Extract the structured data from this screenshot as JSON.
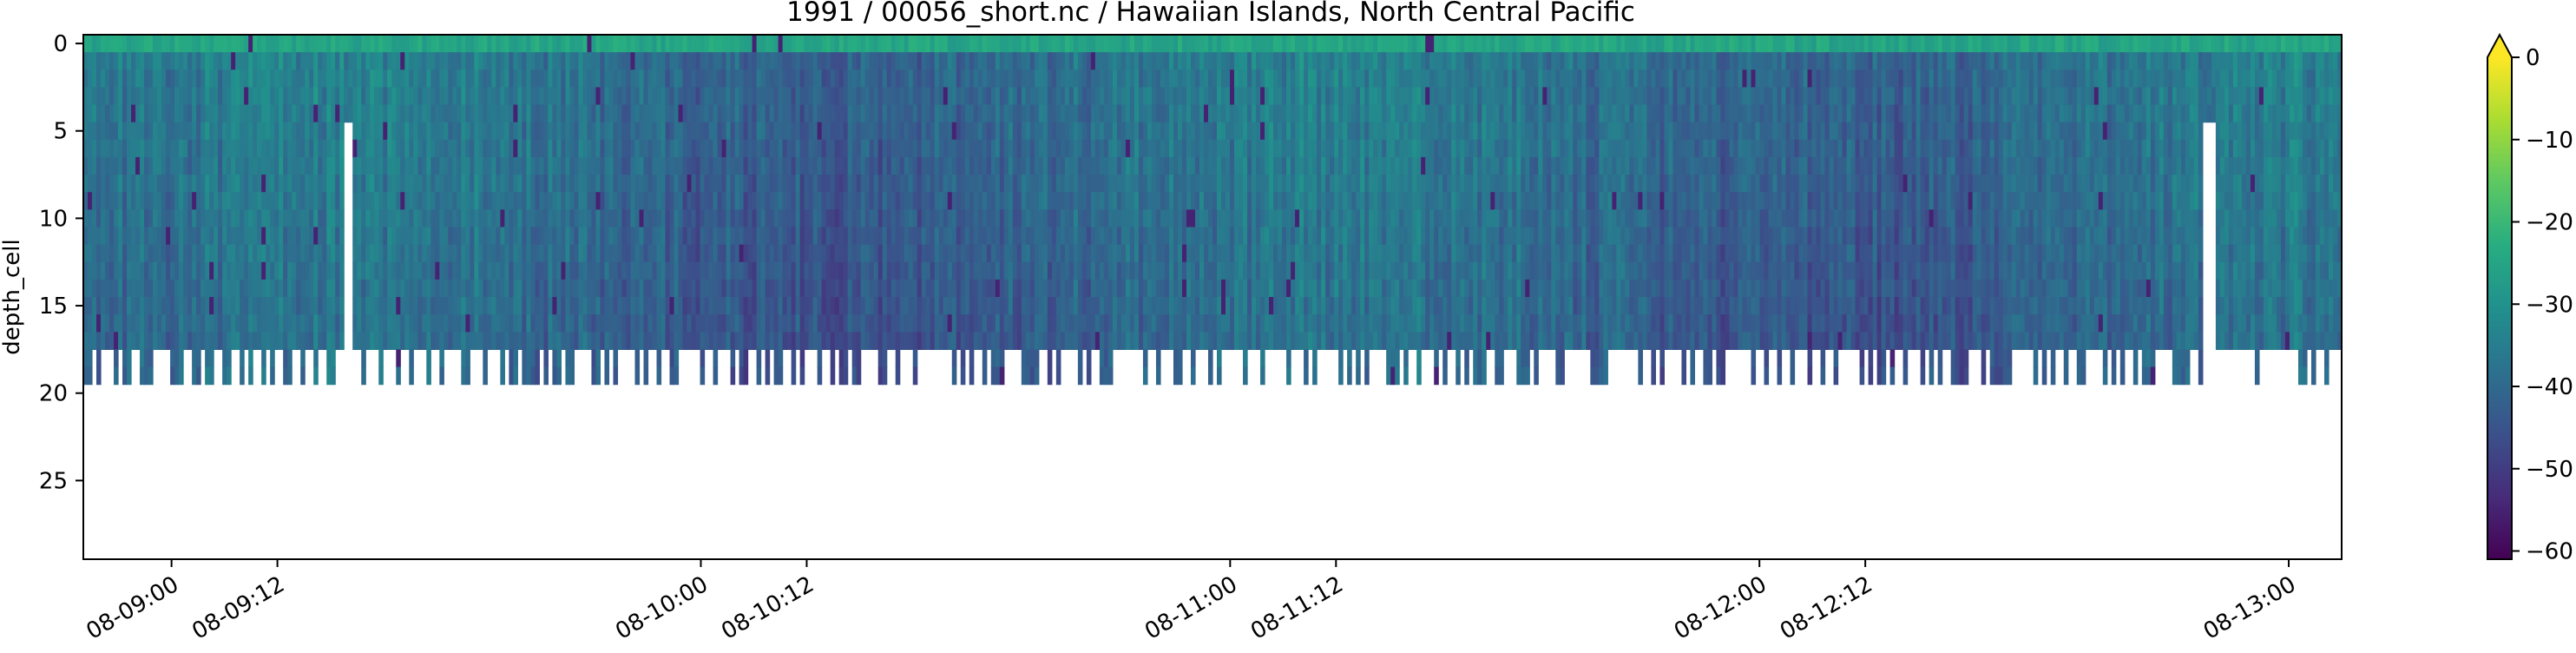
{
  "chart_data": {
    "type": "heatmap",
    "title": "1991 / 00056_short.nc / Hawaiian Islands, North Central Pacific",
    "xlabel": "",
    "ylabel": "depth_cell",
    "x_axis": {
      "kind": "datetime",
      "range": [
        "08-08:50",
        "08-13:06"
      ],
      "ticks": [
        {
          "value": "08-09:00",
          "label": "08-09:00"
        },
        {
          "value": "08-09:12",
          "label": "08-09:12"
        },
        {
          "value": "08-10:00",
          "label": "08-10:00"
        },
        {
          "value": "08-10:12",
          "label": "08-10:12"
        },
        {
          "value": "08-11:00",
          "label": "08-11:00"
        },
        {
          "value": "08-11:12",
          "label": "08-11:12"
        },
        {
          "value": "08-12:00",
          "label": "08-12:00"
        },
        {
          "value": "08-12:12",
          "label": "08-12:12"
        },
        {
          "value": "08-13:00",
          "label": "08-13:00"
        }
      ],
      "tick_label_rotation_deg": 30
    },
    "y_axis": {
      "range": [
        29.5,
        -0.5
      ],
      "inverted": true,
      "ticks": [
        0,
        5,
        10,
        15,
        20,
        25
      ]
    },
    "colorbar": {
      "colormap": "viridis",
      "range": [
        -61,
        0
      ],
      "ticks": [
        0,
        -10,
        -20,
        -30,
        -40,
        -50,
        -60
      ],
      "extend": "max"
    },
    "colormap_stops": [
      "#440154",
      "#472c7a",
      "#3b518b",
      "#2c718e",
      "#21908d",
      "#27ad81",
      "#5cc863",
      "#aadc32",
      "#fde725"
    ],
    "grid": false,
    "legend": "none",
    "data_summary": {
      "typical_value_range": [
        -50,
        -25
      ],
      "surface_cells_value": -25,
      "valid_depth_cells_max_typical": 17,
      "valid_depth_cells_max_extended": 19,
      "dropout_columns_near": [
        "08-09:20",
        "08-12:51"
      ]
    }
  }
}
